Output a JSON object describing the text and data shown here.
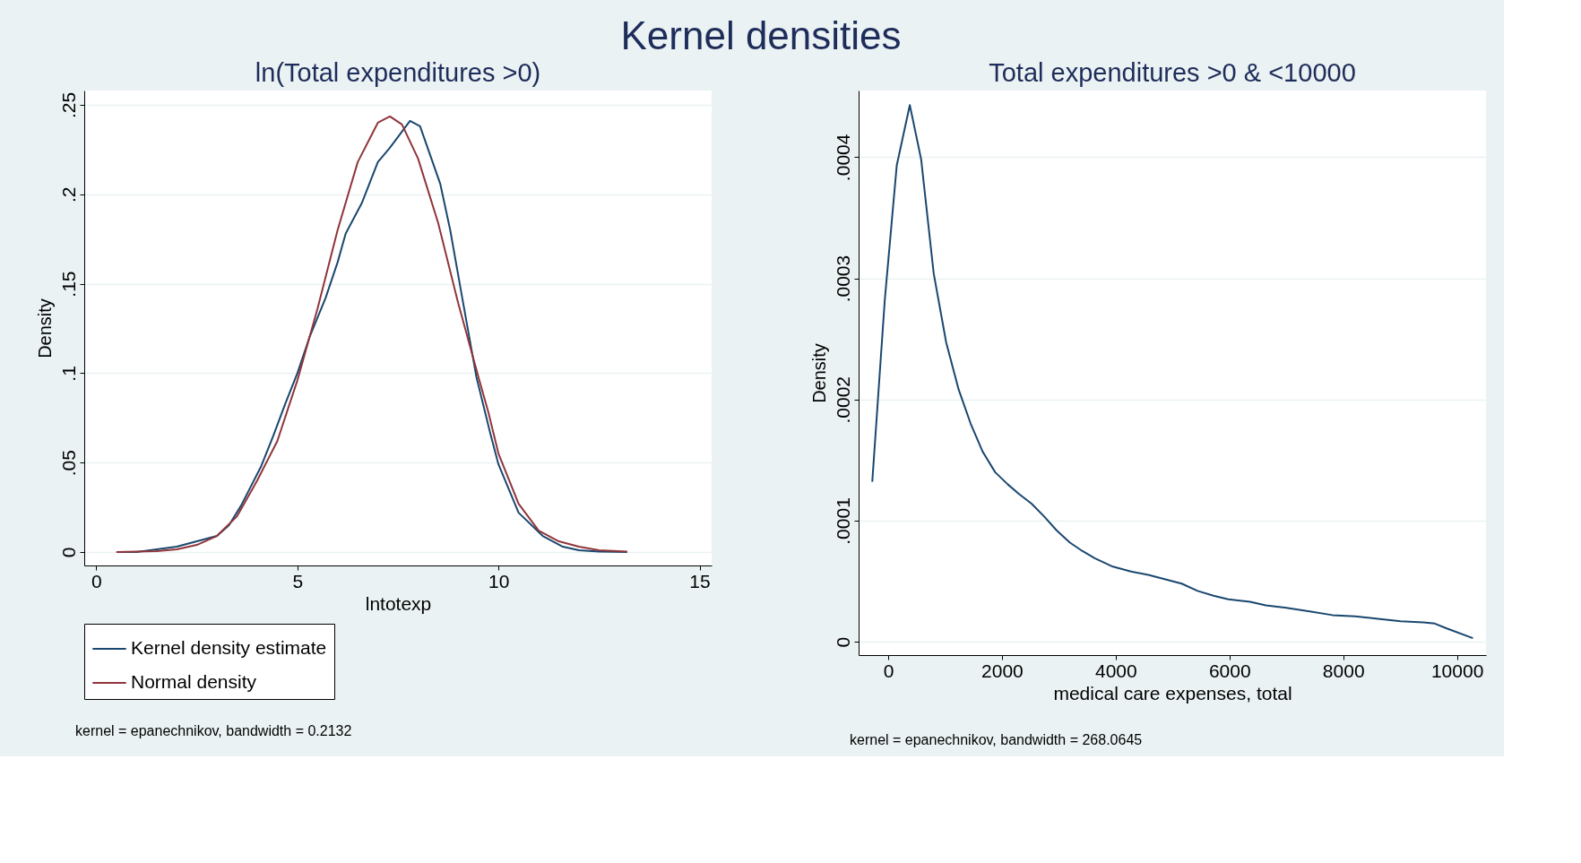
{
  "chart_data": [
    {
      "type": "line",
      "title": "Kernel densities",
      "subtitle": "ln(Total expenditures >0)",
      "xlabel": "lntotexp",
      "ylabel": "Density",
      "xlim": [
        -0.3,
        15.3
      ],
      "ylim": [
        -0.0075,
        0.258
      ],
      "xticks": [
        0,
        5,
        10,
        15
      ],
      "yticks": [
        0,
        {
          "value": 0.05,
          "label": ".05"
        },
        {
          "value": 0.1,
          "label": ".1"
        },
        {
          "value": 0.15,
          "label": ".15"
        },
        {
          "value": 0.2,
          "label": ".2"
        },
        {
          "value": 0.25,
          "label": ".25"
        }
      ],
      "grid": "y",
      "legend": "bottom",
      "series": [
        {
          "name": "Kernel density estimate",
          "color": "#1a476f",
          "x": [
            0.5,
            1,
            1.5,
            2,
            2.5,
            3,
            3.3,
            3.6,
            4.1,
            4.4,
            4.7,
            5,
            5.3,
            5.7,
            6,
            6.2,
            6.6,
            7,
            7.3,
            7.6,
            7.8,
            8.05,
            8.3,
            8.55,
            8.8,
            9.1,
            9.45,
            9.8,
            10,
            10.5,
            11.1,
            11.6,
            12,
            12.5,
            13.2
          ],
          "values": [
            0,
            0,
            0.0015,
            0.003,
            0.006,
            0.009,
            0.015,
            0.026,
            0.048,
            0.065,
            0.083,
            0.1,
            0.12,
            0.142,
            0.162,
            0.178,
            0.195,
            0.218,
            0.226,
            0.235,
            0.241,
            0.238,
            0.222,
            0.206,
            0.18,
            0.142,
            0.098,
            0.066,
            0.049,
            0.022,
            0.009,
            0.003,
            0.001,
            0.0003,
            0
          ]
        },
        {
          "name": "Normal density",
          "color": "#90353b",
          "x": [
            0.5,
            1.5,
            2,
            2.5,
            3,
            3.5,
            4,
            4.5,
            5,
            5.5,
            6,
            6.5,
            7,
            7.3,
            7.6,
            8,
            8.5,
            9,
            9.5,
            9.75,
            10,
            10.5,
            11,
            11.5,
            12,
            12.5,
            13.2
          ],
          "values": [
            0,
            0.0005,
            0.0015,
            0.004,
            0.009,
            0.02,
            0.04,
            0.062,
            0.096,
            0.136,
            0.18,
            0.218,
            0.24,
            0.2435,
            0.239,
            0.22,
            0.184,
            0.139,
            0.098,
            0.078,
            0.055,
            0.027,
            0.012,
            0.006,
            0.003,
            0.001,
            0.0003
          ]
        }
      ],
      "annotations": [
        "kernel = epanechnikov, bandwidth = 0.2132"
      ]
    },
    {
      "type": "line",
      "subtitle": "Total expenditures >0 & <10000",
      "xlabel": "medical care expenses, total",
      "ylabel": "Density",
      "xlim": [
        -520,
        10510
      ],
      "ylim": [
        -1.1e-05,
        0.000455
      ],
      "xticks": [
        0,
        2000,
        4000,
        6000,
        8000,
        10000
      ],
      "yticks": [
        0,
        {
          "value": 0.0001,
          "label": ".0001"
        },
        {
          "value": 0.0002,
          "label": ".0002"
        },
        {
          "value": 0.0003,
          "label": ".0003"
        },
        {
          "value": 0.0004,
          "label": ".0004"
        }
      ],
      "grid": "y",
      "series": [
        {
          "color": "#1a476f",
          "x": [
            -280,
            -60,
            150,
            380,
            580,
            800,
            1020,
            1240,
            1450,
            1660,
            1880,
            2100,
            2300,
            2520,
            2750,
            2960,
            3190,
            3410,
            3630,
            3950,
            4270,
            4590,
            4920,
            5160,
            5440,
            5720,
            5980,
            6360,
            6640,
            7000,
            7410,
            7810,
            8210,
            8610,
            9010,
            9410,
            9610,
            9820,
            10280
          ],
          "values": [
            0.000132,
            0.000282,
            0.000393,
            0.000443,
            0.000398,
            0.000304,
            0.000247,
            0.000208,
            0.00018,
            0.000157,
            0.00014,
            0.00013,
            0.000122,
            0.000114,
            0.000103,
            9.2e-05,
            8.2e-05,
            7.5e-05,
            6.9e-05,
            6.2e-05,
            5.8e-05,
            5.5e-05,
            5.1e-05,
            4.8e-05,
            4.2e-05,
            3.8e-05,
            3.5e-05,
            3.3e-05,
            3e-05,
            2.8e-05,
            2.5e-05,
            2.2e-05,
            2.1e-05,
            1.9e-05,
            1.7e-05,
            1.6e-05,
            1.5e-05,
            1.1e-05,
            3e-06
          ]
        }
      ],
      "annotations": [
        "kernel = epanechnikov, bandwidth = 268.0645"
      ]
    }
  ]
}
